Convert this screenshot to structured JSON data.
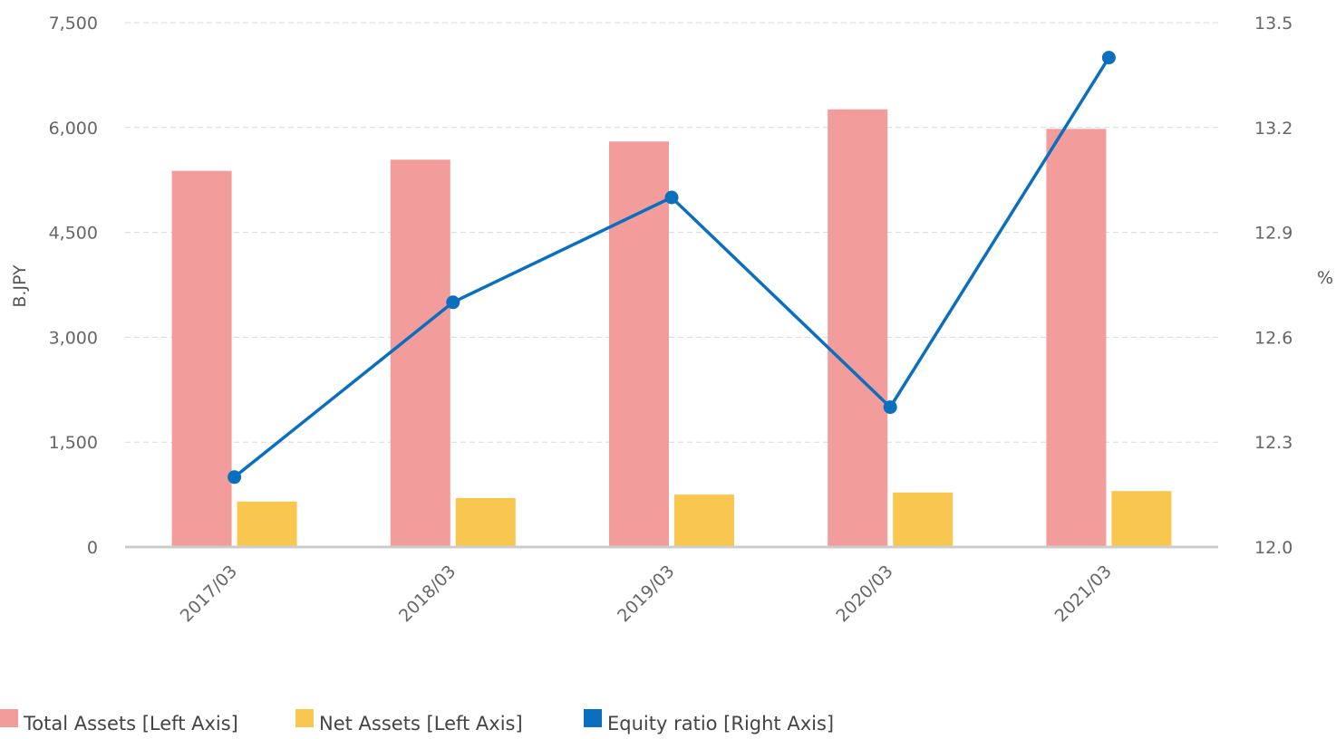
{
  "chart_data": {
    "type": "bar",
    "title": "",
    "categories": [
      "2017/03",
      "2018/03",
      "2019/03",
      "2020/03",
      "2021/03"
    ],
    "series": [
      {
        "name": "Total Assets [Left Axis]",
        "type": "bar",
        "axis": "left",
        "color": "#f29c9c",
        "values": [
          5380,
          5540,
          5800,
          6260,
          5980
        ]
      },
      {
        "name": "Net Assets [Left Axis]",
        "type": "bar",
        "axis": "left",
        "color": "#f9c74f",
        "values": [
          650,
          700,
          750,
          780,
          800
        ]
      },
      {
        "name": "Equity ratio [Right Axis]",
        "type": "line",
        "axis": "right",
        "color": "#0b6fc0",
        "values": [
          12.2,
          12.7,
          13.0,
          12.4,
          13.4
        ]
      }
    ],
    "y_left": {
      "label": "B.JPY",
      "min": 0,
      "max": 7500,
      "ticks": [
        "0",
        "1,500",
        "3,000",
        "4,500",
        "6,000",
        "7,500"
      ],
      "tick_values": [
        0,
        1500,
        3000,
        4500,
        6000,
        7500
      ]
    },
    "y_right": {
      "label": "%",
      "min": 12.0,
      "max": 13.5,
      "ticks": [
        "12.0",
        "12.3",
        "12.6",
        "12.9",
        "13.2",
        "13.5"
      ],
      "tick_values": [
        12.0,
        12.3,
        12.6,
        12.9,
        13.2,
        13.5
      ]
    },
    "grid": true,
    "legend": "bottom-left"
  }
}
